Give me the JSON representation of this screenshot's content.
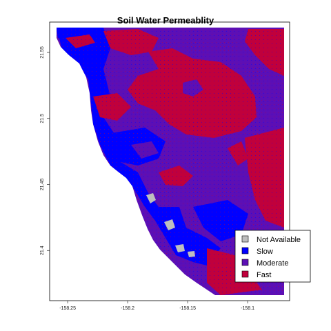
{
  "title": "Soil Water Permeablity",
  "colors": {
    "not_available": "#bebebe",
    "slow": "#0000ff",
    "moderate": "#5c0fb5",
    "fast": "#c0003c",
    "ocean": "#ffffff"
  },
  "x_axis": {
    "range": [
      -158.265,
      -158.065
    ],
    "ticks": [
      {
        "value": -158.25,
        "label": "-158.25"
      },
      {
        "value": -158.2,
        "label": "-158.2"
      },
      {
        "value": -158.15,
        "label": "-158.15"
      },
      {
        "value": -158.1,
        "label": "-158.1"
      }
    ]
  },
  "y_axis": {
    "range": [
      21.362,
      21.573
    ],
    "ticks": [
      {
        "value": 21.4,
        "label": "21.4"
      },
      {
        "value": 21.45,
        "label": "21.45"
      },
      {
        "value": 21.5,
        "label": "21.5"
      },
      {
        "value": 21.55,
        "label": "21.55"
      }
    ]
  },
  "legend": {
    "position": "bottom-right",
    "items": [
      {
        "label": "Not Available",
        "color": "#bebebe"
      },
      {
        "label": "Slow",
        "color": "#0000ff"
      },
      {
        "label": "Moderate",
        "color": "#5c0fb5"
      },
      {
        "label": "Fast",
        "color": "#c0003c"
      }
    ]
  }
}
